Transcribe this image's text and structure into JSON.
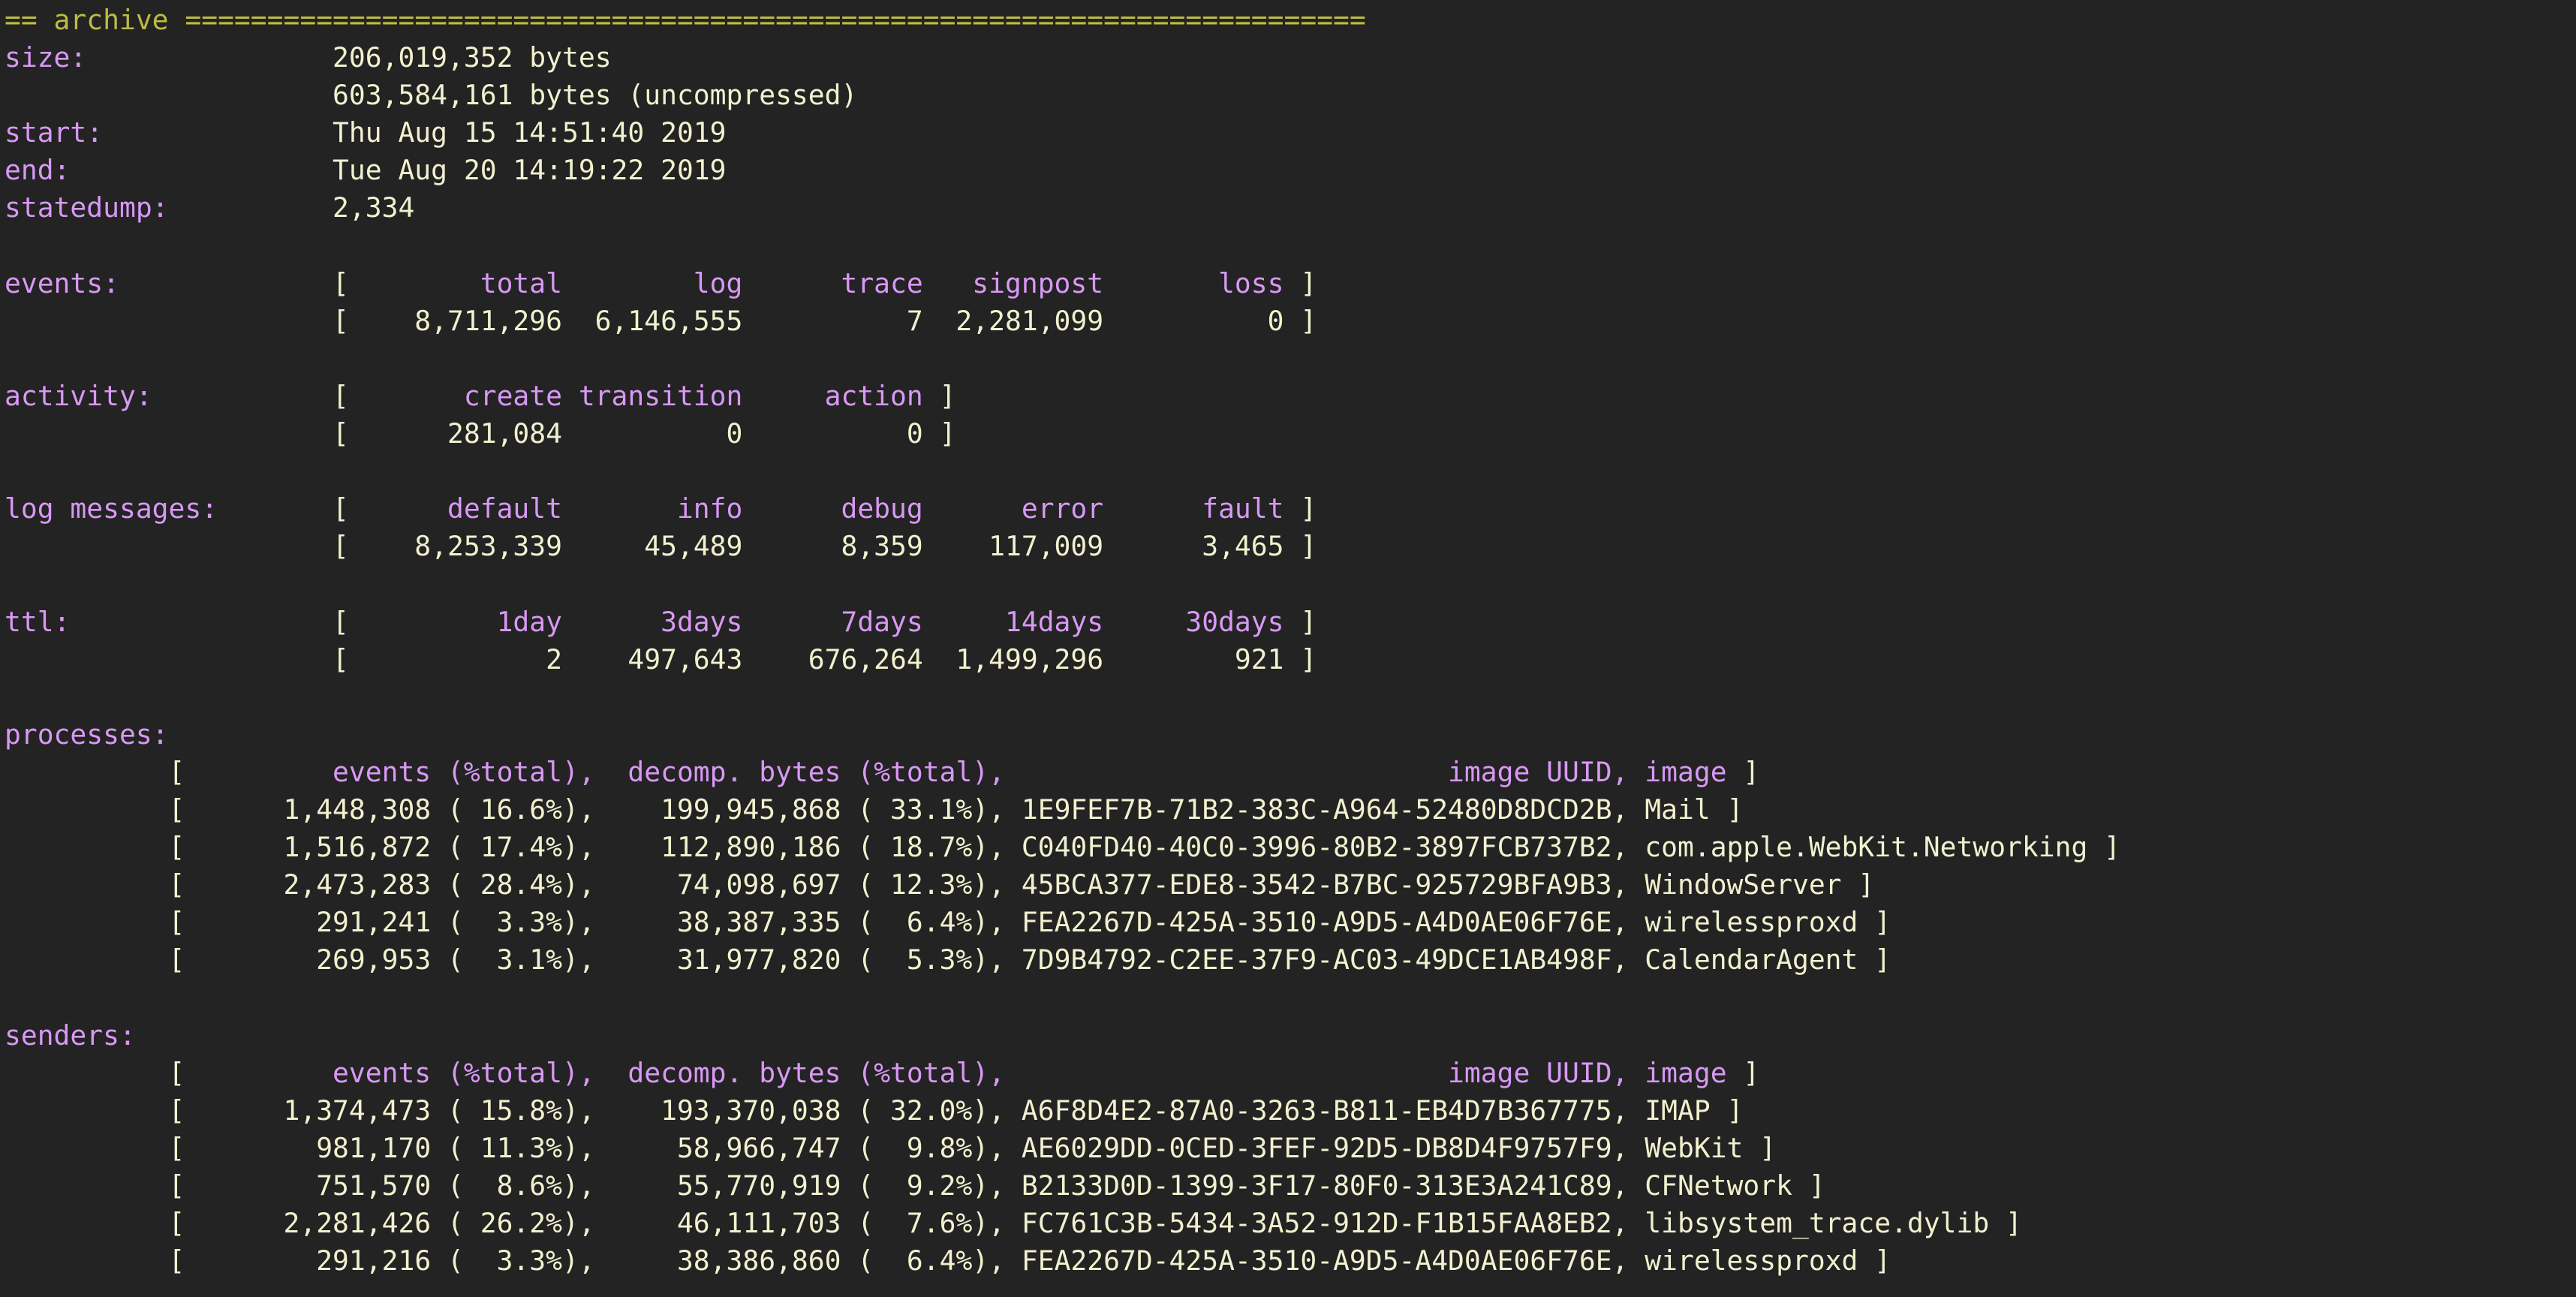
{
  "colors": {
    "background": "#232323",
    "text": "#f1f1cf",
    "label": "#d898f4",
    "section_header": "#bcbc44"
  },
  "header": {
    "title": "== archive ========================================================================"
  },
  "summary": {
    "size_label": "size:",
    "size_compressed": "206,019,352 bytes",
    "size_uncompressed": "603,584,161 bytes (uncompressed)",
    "start_label": "start:",
    "start": "Thu Aug 15 14:51:40 2019",
    "end_label": "end:",
    "end": "Tue Aug 20 14:19:22 2019",
    "statedump_label": "statedump:",
    "statedump": "2,334"
  },
  "tables": [
    {
      "label": "events:",
      "headers": [
        "total",
        "log",
        "trace",
        "signpost",
        "loss"
      ],
      "values": [
        "8,711,296",
        "6,146,555",
        "7",
        "2,281,099",
        "0"
      ]
    },
    {
      "label": "activity:",
      "headers": [
        "create",
        "transition",
        "action"
      ],
      "values": [
        "281,084",
        "0",
        "0"
      ]
    },
    {
      "label": "log messages:",
      "headers": [
        "default",
        "info",
        "debug",
        "error",
        "fault"
      ],
      "values": [
        "8,253,339",
        "45,489",
        "8,359",
        "117,009",
        "3,465"
      ]
    },
    {
      "label": "ttl:",
      "headers": [
        "1day",
        "3days",
        "7days",
        "14days",
        "30days"
      ],
      "values": [
        "2",
        "497,643",
        "676,264",
        "1,499,296",
        "921"
      ]
    }
  ],
  "breakdowns": [
    {
      "label": "processes:",
      "columns": {
        "events": "events",
        "events_pct": "(%total),",
        "bytes": "decomp. bytes",
        "bytes_pct": "(%total),",
        "uuid": "image UUID",
        "image": "image"
      },
      "rows": [
        {
          "events": "1,448,308",
          "events_pct": "16.6",
          "bytes": "199,945,868",
          "bytes_pct": "33.1",
          "uuid": "1E9FEF7B-71B2-383C-A964-52480D8DCD2B",
          "image": "Mail"
        },
        {
          "events": "1,516,872",
          "events_pct": "17.4",
          "bytes": "112,890,186",
          "bytes_pct": "18.7",
          "uuid": "C040FD40-40C0-3996-80B2-3897FCB737B2",
          "image": "com.apple.WebKit.Networking"
        },
        {
          "events": "2,473,283",
          "events_pct": "28.4",
          "bytes": "74,098,697",
          "bytes_pct": "12.3",
          "uuid": "45BCA377-EDE8-3542-B7BC-925729BFA9B3",
          "image": "WindowServer"
        },
        {
          "events": "291,241",
          "events_pct": "3.3",
          "bytes": "38,387,335",
          "bytes_pct": "6.4",
          "uuid": "FEA2267D-425A-3510-A9D5-A4D0AE06F76E",
          "image": "wirelessproxd"
        },
        {
          "events": "269,953",
          "events_pct": "3.1",
          "bytes": "31,977,820",
          "bytes_pct": "5.3",
          "uuid": "7D9B4792-C2EE-37F9-AC03-49DCE1AB498F",
          "image": "CalendarAgent"
        }
      ]
    },
    {
      "label": "senders:",
      "columns": {
        "events": "events",
        "events_pct": "(%total),",
        "bytes": "decomp. bytes",
        "bytes_pct": "(%total),",
        "uuid": "image UUID",
        "image": "image"
      },
      "rows": [
        {
          "events": "1,374,473",
          "events_pct": "15.8",
          "bytes": "193,370,038",
          "bytes_pct": "32.0",
          "uuid": "A6F8D4E2-87A0-3263-B811-EB4D7B367775",
          "image": "IMAP"
        },
        {
          "events": "981,170",
          "events_pct": "11.3",
          "bytes": "58,966,747",
          "bytes_pct": "9.8",
          "uuid": "AE6029DD-0CED-3FEF-92D5-DB8D4F9757F9",
          "image": "WebKit"
        },
        {
          "events": "751,570",
          "events_pct": "8.6",
          "bytes": "55,770,919",
          "bytes_pct": "9.2",
          "uuid": "B2133D0D-1399-3F17-80F0-313E3A241C89",
          "image": "CFNetwork"
        },
        {
          "events": "2,281,426",
          "events_pct": "26.2",
          "bytes": "46,111,703",
          "bytes_pct": "7.6",
          "uuid": "FC761C3B-5434-3A52-912D-F1B15FAA8EB2",
          "image": "libsystem_trace.dylib"
        },
        {
          "events": "291,216",
          "events_pct": "3.3",
          "bytes": "38,386,860",
          "bytes_pct": "6.4",
          "uuid": "FEA2267D-425A-3510-A9D5-A4D0AE06F76E",
          "image": "wirelessproxd"
        }
      ]
    }
  ]
}
